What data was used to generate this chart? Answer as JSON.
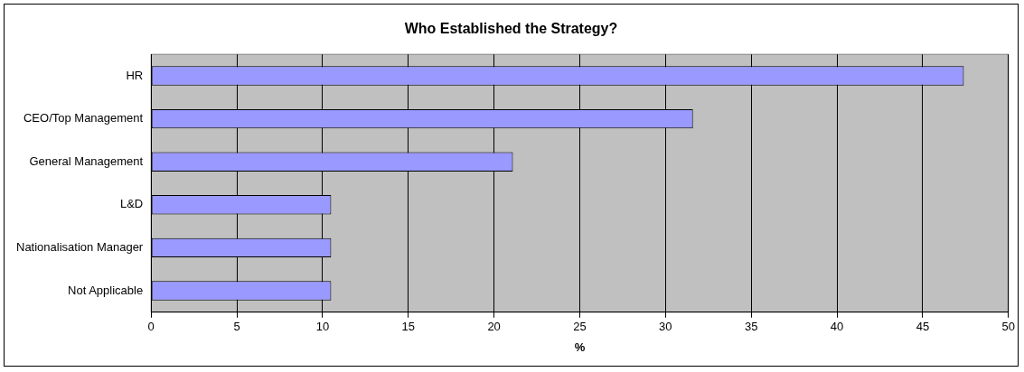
{
  "chart_data": {
    "type": "bar",
    "orientation": "horizontal",
    "title": "Who Established the Strategy?",
    "xlabel": "%",
    "categories": [
      "HR",
      "CEO/Top Management",
      "General Management",
      "L&D",
      "Nationalisation Manager",
      "Not Applicable"
    ],
    "values": [
      47.4,
      31.6,
      21.1,
      10.5,
      10.5,
      10.5
    ],
    "color": "#9999ff",
    "xlim": [
      0,
      50
    ],
    "xticks": [
      0,
      5,
      10,
      15,
      20,
      25,
      30,
      35,
      40,
      45,
      50
    ],
    "grid": "x",
    "legend": false
  }
}
